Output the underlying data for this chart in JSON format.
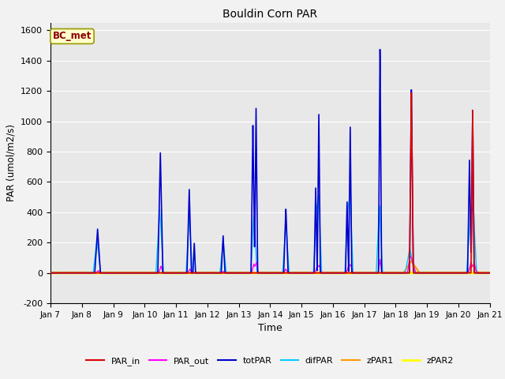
{
  "title": "Bouldin Corn PAR",
  "xlabel": "Time",
  "ylabel": "PAR (umol/m2/s)",
  "ylim": [
    -200,
    1650
  ],
  "xlim": [
    0,
    14
  ],
  "yticks": [
    -200,
    0,
    200,
    400,
    600,
    800,
    1000,
    1200,
    1400,
    1600
  ],
  "xtick_labels": [
    "Jan 7",
    "Jan 8",
    "Jan 9",
    "Jan 10",
    "Jan 11",
    "Jan 12",
    "Jan 13",
    "Jan 14",
    "Jan 15",
    "Jan 16",
    "Jan 17",
    "Jan 18",
    "Jan 19",
    "Jan 20",
    "Jan 21"
  ],
  "series_colors": {
    "PAR_in": "#dd0000",
    "PAR_out": "#ff00ff",
    "totPAR": "#0000cc",
    "difPAR": "#00ccff",
    "zPAR1": "#ff9900",
    "zPAR2": "#ffff00"
  },
  "legend_label": "BC_met",
  "bg_color": "#e8e8e8",
  "grid_color": "#ffffff",
  "fig_bg": "#f2f2f2"
}
